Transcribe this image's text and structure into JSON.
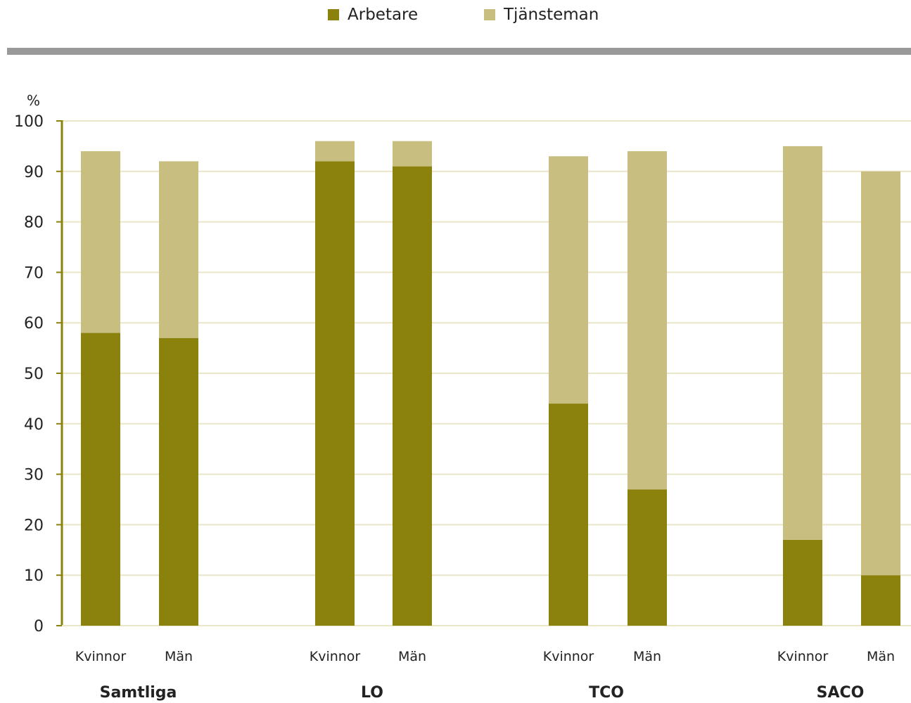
{
  "legend": {
    "items": [
      {
        "label": "Arbetare",
        "color": "#8b820d"
      },
      {
        "label": "Tjänsteman",
        "color": "#c8be7f"
      }
    ]
  },
  "chart_data": {
    "type": "bar",
    "stacked": true,
    "title": "",
    "xlabel": "",
    "ylabel": "%",
    "ylim": [
      0,
      100
    ],
    "yticks": [
      0,
      10,
      20,
      30,
      40,
      50,
      60,
      70,
      80,
      90,
      100
    ],
    "grid": true,
    "legend_position": "top-center",
    "groups": [
      "Samtliga",
      "LO",
      "TCO",
      "SACO"
    ],
    "categories": [
      "Kvinnor",
      "Män",
      "Kvinnor",
      "Män",
      "Kvinnor",
      "Män",
      "Kvinnor",
      "Män"
    ],
    "series": [
      {
        "name": "Arbetare",
        "color": "#8b820d",
        "values": [
          58,
          57,
          92,
          91,
          44,
          27,
          17,
          10
        ]
      },
      {
        "name": "Tjänsteman",
        "color": "#c8be7f",
        "values": [
          36,
          35,
          4,
          5,
          49,
          67,
          78,
          80
        ]
      }
    ]
  }
}
